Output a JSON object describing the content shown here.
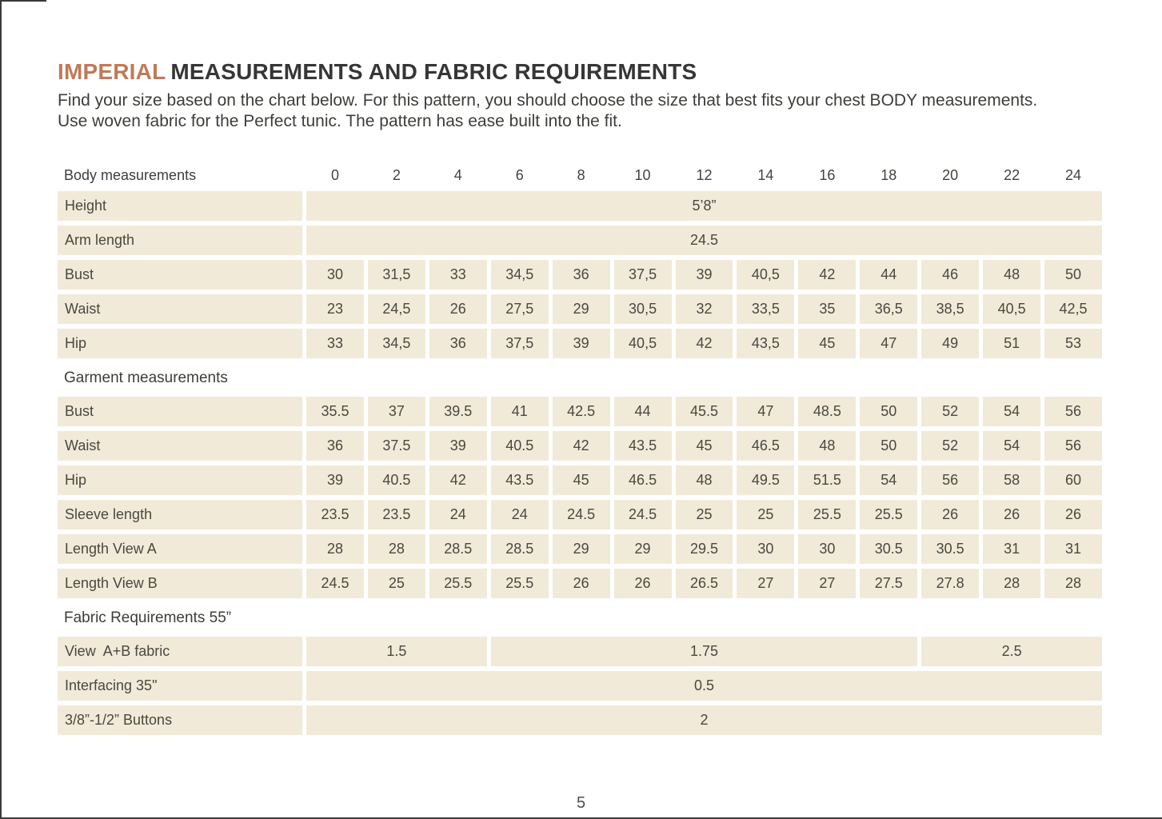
{
  "page": {
    "title_accent": "IMPERIAL",
    "title_rest": "MEASUREMENTS AND FABRIC REQUIREMENTS",
    "subtitle_line1": "Find your size based on the chart below. For this pattern, you should choose the size that best fits your chest BODY measurements.",
    "subtitle_line2": "Use woven fabric for the Perfect tunic. The pattern has ease built into the fit.",
    "page_number": "5"
  },
  "colors": {
    "accent": "#c07a57",
    "cell_bg": "#f1ead8",
    "text_dark": "#363636"
  },
  "table": {
    "column_header_label": "Body measurements",
    "size_columns": [
      "0",
      "2",
      "4",
      "6",
      "8",
      "10",
      "12",
      "14",
      "16",
      "18",
      "20",
      "22",
      "24"
    ],
    "rows": [
      {
        "type": "data",
        "label": "Height",
        "cells": [
          {
            "v": "5’8”",
            "s": 13
          }
        ]
      },
      {
        "type": "data",
        "label": "Arm length",
        "cells": [
          {
            "v": "24.5",
            "s": 13
          }
        ]
      },
      {
        "type": "data",
        "label": "Bust",
        "cells": [
          "30",
          "31,5",
          "33",
          "34,5",
          "36",
          "37,5",
          "39",
          "40,5",
          "42",
          "44",
          "46",
          "48",
          "50"
        ]
      },
      {
        "type": "data",
        "label": "Waist",
        "cells": [
          "23",
          "24,5",
          "26",
          "27,5",
          "29",
          "30,5",
          "32",
          "33,5",
          "35",
          "36,5",
          "38,5",
          "40,5",
          "42,5"
        ]
      },
      {
        "type": "data",
        "label": "Hip",
        "cells": [
          "33",
          "34,5",
          "36",
          "37,5",
          "39",
          "40,5",
          "42",
          "43,5",
          "45",
          "47",
          "49",
          "51",
          "53"
        ]
      },
      {
        "type": "section",
        "label": "Garment measurements"
      },
      {
        "type": "data",
        "label": "Bust",
        "cells": [
          "35.5",
          "37",
          "39.5",
          "41",
          "42.5",
          "44",
          "45.5",
          "47",
          "48.5",
          "50",
          "52",
          "54",
          "56"
        ]
      },
      {
        "type": "data",
        "label": "Waist",
        "cells": [
          "36",
          "37.5",
          "39",
          "40.5",
          "42",
          "43.5",
          "45",
          "46.5",
          "48",
          "50",
          "52",
          "54",
          "56"
        ]
      },
      {
        "type": "data",
        "label": "Hip",
        "cells": [
          "39",
          "40.5",
          "42",
          "43.5",
          "45",
          "46.5",
          "48",
          "49.5",
          "51.5",
          "54",
          "56",
          "58",
          "60"
        ]
      },
      {
        "type": "data",
        "label": "Sleeve length",
        "cells": [
          "23.5",
          "23.5",
          "24",
          "24",
          "24.5",
          "24.5",
          "25",
          "25",
          "25.5",
          "25.5",
          "26",
          "26",
          "26"
        ]
      },
      {
        "type": "data",
        "label": "Length View A",
        "cells": [
          "28",
          "28",
          "28.5",
          "28.5",
          "29",
          "29",
          "29.5",
          "30",
          "30",
          "30.5",
          "30.5",
          "31",
          "31"
        ]
      },
      {
        "type": "data",
        "label": "Length View B",
        "cells": [
          "24.5",
          "25",
          "25.5",
          "25.5",
          "26",
          "26",
          "26.5",
          "27",
          "27",
          "27.5",
          "27.8",
          "28",
          "28"
        ]
      },
      {
        "type": "section",
        "label": "Fabric Requirements 55”"
      },
      {
        "type": "data",
        "label": "View  A+B fabric",
        "cells": [
          {
            "v": "1.5",
            "s": 3
          },
          {
            "v": "1.75",
            "s": 7
          },
          {
            "v": "2.5",
            "s": 3
          }
        ]
      },
      {
        "type": "data",
        "label": "Interfacing 35\"",
        "cells": [
          {
            "v": "0.5",
            "s": 13
          }
        ]
      },
      {
        "type": "data",
        "label": "3/8”-1/2” Buttons",
        "cells": [
          {
            "v": "2",
            "s": 13
          }
        ]
      }
    ]
  }
}
